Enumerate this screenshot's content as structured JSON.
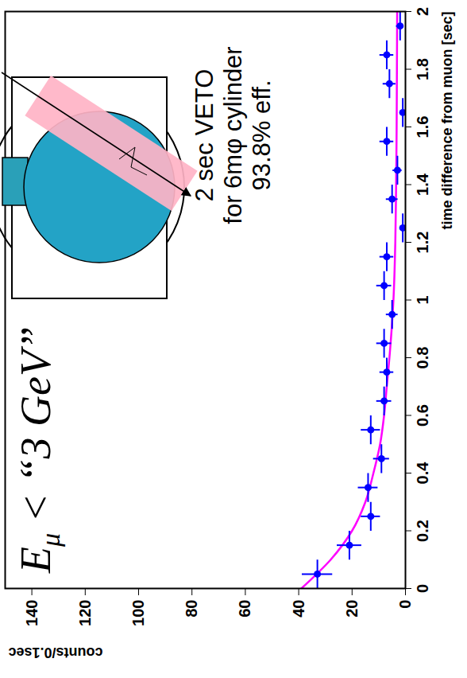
{
  "chart_data": {
    "type": "scatter",
    "x_label": "time difference from muon [sec]",
    "y_label": "counts/0.1sec",
    "x": [
      0.05,
      0.15,
      0.25,
      0.35,
      0.45,
      0.55,
      0.65,
      0.75,
      0.85,
      0.95,
      1.05,
      1.15,
      1.25,
      1.35,
      1.45,
      1.55,
      1.65,
      1.75,
      1.85,
      1.95
    ],
    "values": [
      33,
      21,
      13,
      14,
      9,
      13,
      8,
      7,
      8,
      5,
      8,
      7,
      1,
      5,
      3,
      7,
      1,
      6,
      7,
      2
    ],
    "errors": [
      5.7,
      4.6,
      3.6,
      3.7,
      3,
      3.6,
      2.8,
      2.6,
      2.8,
      2.2,
      2.8,
      2.6,
      1,
      2.2,
      1.7,
      2.6,
      1,
      2.4,
      2.6,
      1.4
    ],
    "x_errors": [
      0.05,
      0.05,
      0.05,
      0.05,
      0.05,
      0.05,
      0.05,
      0.05,
      0.05,
      0.05,
      0.05,
      0.05,
      0.05,
      0.05,
      0.05,
      0.05,
      0.05,
      0.05,
      0.05,
      0.05
    ],
    "color": "#0000ff",
    "marker": "circle",
    "fit": {
      "x": [
        0,
        0.1,
        0.2,
        0.3,
        0.4,
        0.5,
        0.6,
        0.7,
        0.8,
        1.0,
        1.2,
        1.4,
        1.6,
        1.8,
        2.0
      ],
      "values": [
        39,
        28,
        20,
        15,
        12,
        9.5,
        8,
        7,
        6,
        4.5,
        3.8,
        3.5,
        3.3,
        3.2,
        3.1
      ],
      "color": "#ff00ff",
      "line_style": "solid"
    },
    "xlim": [
      0,
      2
    ],
    "xticks": [
      0,
      0.2,
      0.4,
      0.6,
      0.8,
      1,
      1.2,
      1.4,
      1.6,
      1.8,
      2
    ],
    "ylim": [
      0,
      150
    ],
    "yticks": [
      0,
      20,
      40,
      60,
      80,
      100,
      120,
      140
    ],
    "annotations": {
      "cut": {
        "symbol": "E",
        "subscript": "μ",
        "text": " < “3 GeV”"
      },
      "veto": [
        "2 sec VETO",
        "for 6mφ cylinder",
        "93.8% eff."
      ]
    }
  }
}
